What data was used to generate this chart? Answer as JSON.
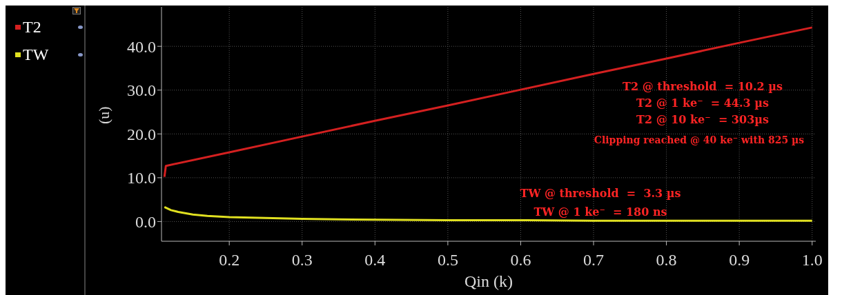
{
  "chart_data": {
    "type": "line",
    "xlabel": "Qin (k)",
    "ylabel": "(u)",
    "xlim": [
      0.107,
      1.005
    ],
    "ylim": [
      -4.5,
      49
    ],
    "xticks": [
      0.2,
      0.3,
      0.4,
      0.5,
      0.6,
      0.7,
      0.8,
      0.9,
      {
        "value": 1.0,
        "label": "1.0"
      }
    ],
    "yticks": [
      {
        "value": 0,
        "label": "0.0"
      },
      {
        "value": 10,
        "label": "10.0"
      },
      {
        "value": 20,
        "label": "20.0"
      },
      {
        "value": 30,
        "label": "30.0"
      },
      {
        "value": 40,
        "label": "40.0"
      }
    ],
    "grid": true,
    "legend": "top left",
    "marker": "none",
    "line_style": "solid",
    "series": [
      {
        "name": "T2",
        "color": "#d42020",
        "x": [
          0.111,
          0.113,
          0.2,
          0.3,
          0.4,
          0.5,
          0.6,
          0.7,
          0.8,
          0.9,
          1.0
        ],
        "values": [
          10.2,
          12.7,
          15.8,
          19.4,
          23.0,
          26.5,
          30.1,
          33.7,
          37.2,
          40.8,
          44.3
        ]
      },
      {
        "name": "TW",
        "color": "#e0e020",
        "x": [
          0.111,
          0.12,
          0.13,
          0.15,
          0.17,
          0.2,
          0.25,
          0.3,
          0.35,
          0.4,
          0.5,
          0.6,
          0.7,
          0.8,
          0.9,
          1.0
        ],
        "values": [
          3.3,
          2.6,
          2.2,
          1.6,
          1.3,
          1.0,
          0.8,
          0.6,
          0.5,
          0.4,
          0.3,
          0.3,
          0.2,
          0.2,
          0.2,
          0.2
        ]
      }
    ],
    "annotations": [
      "T2 @ threshold  = 10.2 µs",
      "T2 @ 1 ke⁻  = 44.3 µs",
      "T2 @ 10 ke⁻  = 303µs",
      "Clipping reached @ 40 ke⁻ with 825 µs",
      "TW @ threshold  =  3.3 µs",
      "TW @ 1 ke⁻  = 180 ns"
    ]
  }
}
